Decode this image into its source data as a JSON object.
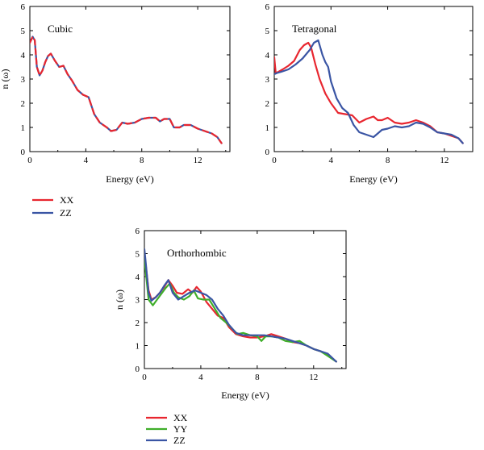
{
  "figure": {
    "colors": {
      "XX": "#e8262f",
      "YY": "#3fae2a",
      "ZZ": "#3a55a4"
    },
    "cubic_legend": [
      "XX",
      "ZZ"
    ],
    "ortho_legend": [
      "XX",
      "YY",
      "ZZ"
    ]
  },
  "chart_data": [
    {
      "type": "line",
      "title": "Cubic",
      "xlabel": "Energy (eV)",
      "ylabel": "n (ω)",
      "xlim": [
        0,
        14.3
      ],
      "ylim": [
        0,
        6
      ],
      "xticks": [
        0,
        4,
        8,
        12
      ],
      "yticks": [
        0,
        1,
        2,
        3,
        4,
        5,
        6
      ],
      "legend": "below",
      "series": [
        {
          "name": "XX",
          "dashed": true,
          "x": [
            0,
            0.2,
            0.35,
            0.5,
            0.7,
            0.9,
            1.1,
            1.3,
            1.5,
            1.8,
            2.1,
            2.4,
            2.7,
            3.0,
            3.4,
            3.8,
            4.2,
            4.6,
            5.0,
            5.5,
            5.8,
            6.2,
            6.6,
            7.0,
            7.5,
            8.0,
            8.5,
            9.0,
            9.3,
            9.6,
            10.0,
            10.3,
            10.7,
            11.0,
            11.5,
            12.0,
            12.5,
            13.0,
            13.4,
            13.7
          ],
          "y": [
            4.5,
            4.75,
            4.6,
            3.5,
            3.15,
            3.35,
            3.7,
            3.95,
            4.05,
            3.75,
            3.5,
            3.55,
            3.2,
            2.95,
            2.55,
            2.35,
            2.25,
            1.55,
            1.2,
            1.0,
            0.85,
            0.9,
            1.2,
            1.15,
            1.2,
            1.35,
            1.4,
            1.4,
            1.25,
            1.35,
            1.35,
            1.0,
            1.0,
            1.1,
            1.1,
            0.95,
            0.85,
            0.75,
            0.6,
            0.35
          ]
        },
        {
          "name": "ZZ",
          "x": [
            0,
            0.2,
            0.35,
            0.5,
            0.7,
            0.9,
            1.1,
            1.3,
            1.5,
            1.8,
            2.1,
            2.4,
            2.7,
            3.0,
            3.4,
            3.8,
            4.2,
            4.6,
            5.0,
            5.5,
            5.8,
            6.2,
            6.6,
            7.0,
            7.5,
            8.0,
            8.5,
            9.0,
            9.3,
            9.6,
            10.0,
            10.3,
            10.7,
            11.0,
            11.5,
            12.0,
            12.5,
            13.0,
            13.4,
            13.7
          ],
          "y": [
            4.5,
            4.75,
            4.6,
            3.5,
            3.15,
            3.35,
            3.7,
            3.95,
            4.05,
            3.75,
            3.5,
            3.55,
            3.2,
            2.95,
            2.55,
            2.35,
            2.25,
            1.55,
            1.2,
            1.0,
            0.85,
            0.9,
            1.2,
            1.15,
            1.2,
            1.35,
            1.4,
            1.4,
            1.25,
            1.35,
            1.35,
            1.0,
            1.0,
            1.1,
            1.1,
            0.95,
            0.85,
            0.75,
            0.6,
            0.35
          ]
        }
      ]
    },
    {
      "type": "line",
      "title": "Tetragonal",
      "xlabel": "Energy (eV)",
      "ylabel": "",
      "xlim": [
        0,
        14
      ],
      "ylim": [
        0,
        6
      ],
      "xticks": [
        0,
        4,
        8,
        12
      ],
      "yticks": [
        0,
        1,
        2,
        3,
        4,
        5,
        6
      ],
      "legend": "none",
      "series": [
        {
          "name": "XX",
          "x": [
            0,
            0.1,
            0.3,
            0.6,
            1.0,
            1.4,
            1.8,
            2.1,
            2.4,
            2.6,
            2.9,
            3.2,
            3.6,
            4.0,
            4.5,
            5.0,
            5.5,
            6.0,
            6.5,
            7.0,
            7.3,
            7.6,
            8.0,
            8.5,
            9.0,
            9.5,
            10.0,
            10.5,
            11.0,
            11.5,
            12.0,
            12.5,
            13.0,
            13.3
          ],
          "y": [
            3.9,
            3.25,
            3.3,
            3.4,
            3.55,
            3.75,
            4.2,
            4.4,
            4.5,
            4.3,
            3.6,
            3.0,
            2.4,
            2.0,
            1.6,
            1.55,
            1.5,
            1.2,
            1.35,
            1.45,
            1.3,
            1.3,
            1.4,
            1.2,
            1.15,
            1.2,
            1.3,
            1.2,
            1.05,
            0.8,
            0.75,
            0.65,
            0.55,
            0.35
          ]
        },
        {
          "name": "ZZ",
          "x": [
            0,
            0.2,
            0.5,
            1.0,
            1.5,
            2.0,
            2.5,
            2.8,
            3.1,
            3.4,
            3.6,
            3.8,
            4.0,
            4.4,
            4.8,
            5.2,
            5.6,
            6.0,
            6.5,
            7.0,
            7.3,
            7.6,
            8.0,
            8.5,
            9.0,
            9.5,
            10.0,
            10.5,
            11.0,
            11.5,
            12.0,
            12.5,
            13.0,
            13.3
          ],
          "y": [
            3.2,
            3.25,
            3.3,
            3.4,
            3.6,
            3.85,
            4.2,
            4.5,
            4.6,
            4.0,
            3.7,
            3.5,
            2.9,
            2.2,
            1.8,
            1.6,
            1.1,
            0.8,
            0.7,
            0.6,
            0.75,
            0.9,
            0.95,
            1.05,
            1.0,
            1.05,
            1.2,
            1.15,
            1.0,
            0.8,
            0.75,
            0.7,
            0.55,
            0.35
          ]
        }
      ]
    },
    {
      "type": "line",
      "title": "Orthorhombic",
      "xlabel": "Energy (eV)",
      "ylabel": "n (ω)",
      "xlim": [
        0,
        14.3
      ],
      "ylim": [
        0,
        6
      ],
      "xticks": [
        0,
        4,
        8,
        12
      ],
      "yticks": [
        0,
        1,
        2,
        3,
        4,
        5,
        6
      ],
      "legend": "below",
      "series": [
        {
          "name": "XX",
          "x": [
            0,
            0.1,
            0.3,
            0.5,
            0.8,
            1.1,
            1.4,
            1.7,
            2.0,
            2.3,
            2.7,
            3.1,
            3.4,
            3.7,
            4.0,
            4.4,
            4.8,
            5.2,
            5.6,
            6.0,
            6.5,
            7.0,
            7.5,
            8.0,
            8.5,
            9.0,
            9.5,
            10.0,
            10.5,
            11.0,
            11.5,
            12.0,
            12.5,
            13.0,
            13.6
          ],
          "y": [
            4.9,
            4.5,
            3.4,
            3.0,
            3.1,
            3.3,
            3.55,
            3.85,
            3.6,
            3.3,
            3.25,
            3.45,
            3.3,
            3.55,
            3.35,
            2.9,
            2.6,
            2.3,
            2.2,
            1.8,
            1.5,
            1.4,
            1.35,
            1.35,
            1.4,
            1.5,
            1.4,
            1.3,
            1.15,
            1.1,
            1.0,
            0.85,
            0.75,
            0.6,
            0.3
          ]
        },
        {
          "name": "YY",
          "x": [
            0,
            0.1,
            0.3,
            0.6,
            0.9,
            1.2,
            1.5,
            1.8,
            2.1,
            2.4,
            2.8,
            3.2,
            3.5,
            3.8,
            4.2,
            4.6,
            5.0,
            5.4,
            5.8,
            6.2,
            6.6,
            7.0,
            7.5,
            8.0,
            8.3,
            8.6,
            9.0,
            9.5,
            10.0,
            10.5,
            11.0,
            11.5,
            12.0,
            12.5,
            13.0,
            13.6
          ],
          "y": [
            4.8,
            4.2,
            3.0,
            2.75,
            3.0,
            3.25,
            3.5,
            3.7,
            3.3,
            3.1,
            3.0,
            3.15,
            3.4,
            3.05,
            3.0,
            3.0,
            2.6,
            2.2,
            2.0,
            1.75,
            1.5,
            1.55,
            1.45,
            1.4,
            1.2,
            1.4,
            1.4,
            1.35,
            1.2,
            1.15,
            1.2,
            1.0,
            0.85,
            0.75,
            0.55,
            0.3
          ]
        },
        {
          "name": "ZZ",
          "x": [
            0,
            0.1,
            0.3,
            0.5,
            0.8,
            1.1,
            1.4,
            1.7,
            2.0,
            2.4,
            2.8,
            3.2,
            3.6,
            4.0,
            4.4,
            4.8,
            5.2,
            5.6,
            6.0,
            6.5,
            7.0,
            7.5,
            8.0,
            8.5,
            9.0,
            9.5,
            10.0,
            10.5,
            11.0,
            11.5,
            12.0,
            12.5,
            13.0,
            13.6
          ],
          "y": [
            5.2,
            4.6,
            3.3,
            2.95,
            3.1,
            3.3,
            3.6,
            3.85,
            3.3,
            3.0,
            3.15,
            3.3,
            3.4,
            3.3,
            3.2,
            3.0,
            2.6,
            2.3,
            1.9,
            1.55,
            1.45,
            1.45,
            1.45,
            1.45,
            1.4,
            1.35,
            1.3,
            1.2,
            1.1,
            1.0,
            0.85,
            0.75,
            0.65,
            0.3
          ]
        }
      ]
    }
  ]
}
